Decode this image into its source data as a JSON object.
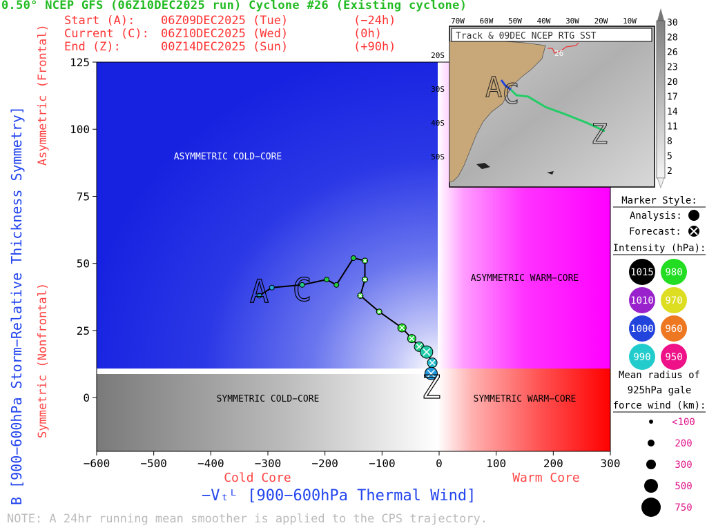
{
  "header": {
    "title": "0.50° NCEP GFS (06Z10DEC2025 run) Cyclone #26 (Existing cyclone)",
    "rows": [
      {
        "label": "Start (A):",
        "date": "06Z09DEC2025 (Tue)",
        "offset": "(−24h)"
      },
      {
        "label": "Current (C):",
        "date": "06Z10DEC2025 (Wed)",
        "offset": "(0h)"
      },
      {
        "label": "End (Z):",
        "date": "00Z14DEC2025 (Sun)",
        "offset": "(+90h)"
      }
    ]
  },
  "chart_data": {
    "type": "scatter",
    "xlabel": "−Vₜᴸ [900−600hPa Thermal Wind]",
    "ylabel": "B [900−600hPa Storm−Relative Thickness Symmetry]",
    "xlim": [
      -600,
      300
    ],
    "ylim": [
      -20,
      125
    ],
    "x_ticks": [
      "−600",
      "−500",
      "−400",
      "−300",
      "−200",
      "−100",
      "0",
      "100",
      "200",
      "300"
    ],
    "y_ticks": [
      "0",
      "25",
      "50",
      "75",
      "100",
      "125"
    ],
    "x_axis_notes": {
      "left": "Cold Core",
      "right": "Warm Core"
    },
    "y_axis_notes": {
      "upper": "Asymmetric (Frontal)",
      "lower": "Symmetric (Nonfrontal)"
    },
    "quadrants": {
      "upper_left": "ASYMMETRIC COLD−CORE",
      "upper_right": "ASYMMETRIC WARM−CORE",
      "lower_left": "SYMMETRIC COLD−CORE",
      "lower_right": "SYMMETRIC WARM−CORE"
    },
    "track_labels": {
      "start": "A",
      "current": "C",
      "end": "Z"
    },
    "analysis_points": [
      {
        "x": -315,
        "y": 38,
        "color": "#22aadd"
      },
      {
        "x": -293,
        "y": 41,
        "color": "#22aadd"
      },
      {
        "x": -240,
        "y": 42,
        "color": "#22cc88"
      },
      {
        "x": -197,
        "y": 44,
        "color": "#22cc44"
      },
      {
        "x": -180,
        "y": 42,
        "color": "#22cc44"
      },
      {
        "x": -150,
        "y": 52,
        "color": "#22cc44"
      }
    ],
    "forecast_points": [
      {
        "x": -130,
        "y": 51,
        "color": "#22dd22",
        "size": 8
      },
      {
        "x": -130,
        "y": 44,
        "color": "#22dd22",
        "size": 8
      },
      {
        "x": -138,
        "y": 38,
        "color": "#22dd22",
        "size": 8
      },
      {
        "x": -105,
        "y": 32,
        "color": "#22dd22",
        "size": 8
      },
      {
        "x": -65,
        "y": 26,
        "color": "#22dd22",
        "size": 12
      },
      {
        "x": -48,
        "y": 22,
        "color": "#22dd44",
        "size": 12
      },
      {
        "x": -35,
        "y": 19,
        "color": "#22cc88",
        "size": 14
      },
      {
        "x": -22,
        "y": 17,
        "color": "#22ccaa",
        "size": 18
      },
      {
        "x": -12,
        "y": 13,
        "color": "#22bbcc",
        "size": 14
      },
      {
        "x": -14,
        "y": 9,
        "color": "#2299dd",
        "size": 18
      }
    ],
    "grid": false
  },
  "inset": {
    "title": "Track & 09DEC NCEP RTG SST",
    "lon_labels": [
      "70W",
      "60W",
      "50W",
      "40W",
      "30W",
      "20W",
      "10W"
    ],
    "lat_labels": [
      "20S",
      "30S",
      "40S",
      "50S"
    ],
    "storm_number": "26",
    "track_labels": [
      "A",
      "C",
      "Z"
    ],
    "colorbar_labels": [
      "30",
      "28",
      "26",
      "23",
      "20",
      "17",
      "14",
      "11",
      "8",
      "5",
      "2"
    ]
  },
  "legend": {
    "marker_style_title": "Marker Style:",
    "analysis_label": "Analysis:",
    "forecast_label": "Forecast:",
    "intensity_title": "Intensity (hPa):",
    "intensity": [
      {
        "value": "1015",
        "color": "#000000",
        "text_color": "#ffffff"
      },
      {
        "value": "980",
        "color": "#22dd22",
        "text_color": "#ffffff"
      },
      {
        "value": "1010",
        "color": "#9922cc",
        "text_color": "#ffffff"
      },
      {
        "value": "970",
        "color": "#dddd22",
        "text_color": "#ffffff"
      },
      {
        "value": "1000",
        "color": "#2244dd",
        "text_color": "#ffffff"
      },
      {
        "value": "960",
        "color": "#ee7722",
        "text_color": "#ffffff"
      },
      {
        "value": "990",
        "color": "#22cccc",
        "text_color": "#ffffff"
      },
      {
        "value": "950",
        "color": "#ee1188",
        "text_color": "#ffffff"
      }
    ],
    "radius_title_lines": [
      "Mean radius of",
      "925hPa gale",
      "force wind (km):"
    ],
    "radius": [
      {
        "label": "<100",
        "size": 3
      },
      {
        "label": "200",
        "size": 5
      },
      {
        "label": "300",
        "size": 7
      },
      {
        "label": "500",
        "size": 10
      },
      {
        "label": "750",
        "size": 14
      }
    ]
  },
  "note": "NOTE:  A 24hr running mean smoother is applied to the CPS trajectory."
}
